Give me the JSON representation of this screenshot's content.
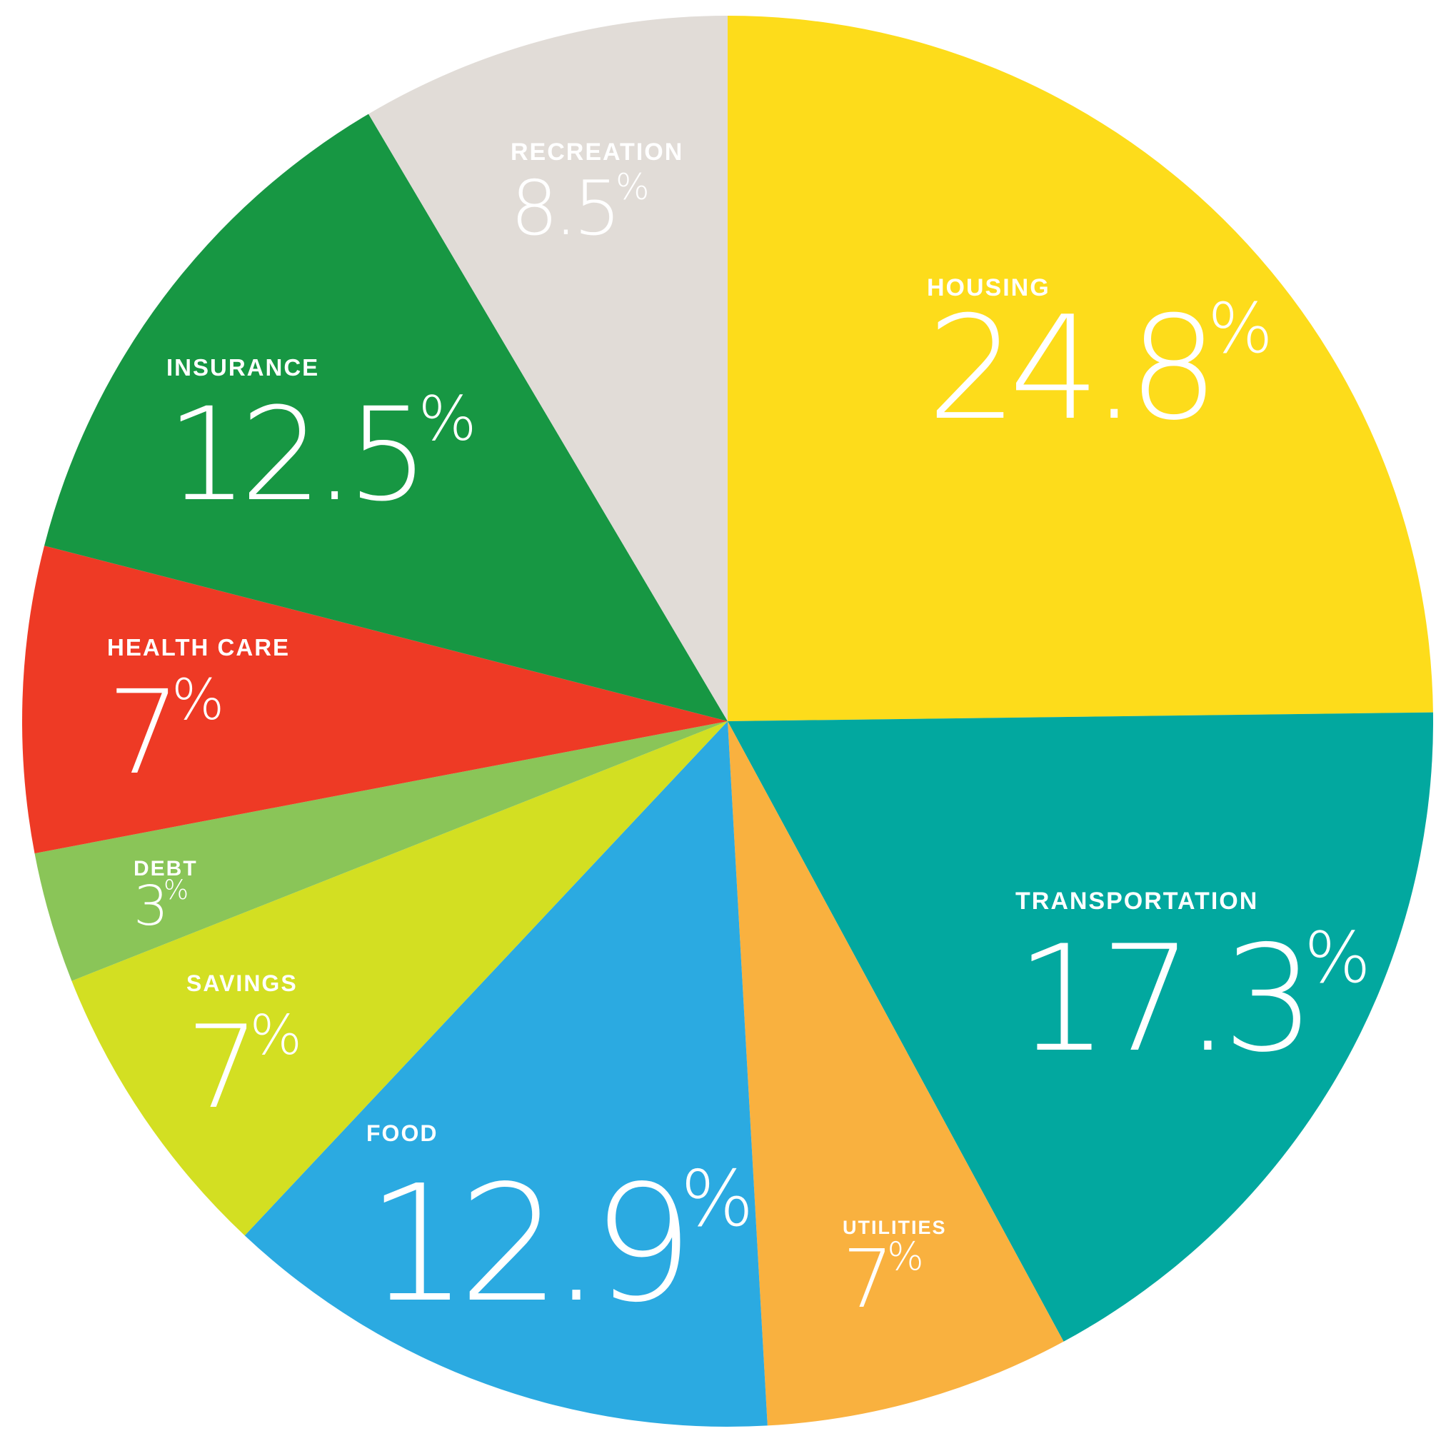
{
  "chart_data": {
    "type": "pie",
    "title": "",
    "start": "12 o'clock",
    "direction": "clockwise",
    "slices": [
      {
        "label": "HOUSING",
        "value": 24.8,
        "num": "24.8",
        "color": "#FDDC1B"
      },
      {
        "label": "TRANSPORTATION",
        "value": 17.3,
        "num": "17.3",
        "color": "#02A89F"
      },
      {
        "label": "UTILITIES",
        "value": 7,
        "num": "7",
        "color": "#F9B13F"
      },
      {
        "label": "FOOD",
        "value": 12.9,
        "num": "12.9",
        "color": "#2BAAE1"
      },
      {
        "label": "SAVINGS",
        "value": 7,
        "num": "7",
        "color": "#D3DF22"
      },
      {
        "label": "DEBT",
        "value": 3,
        "num": "3",
        "color": "#8AC558"
      },
      {
        "label": "HEALTH CARE",
        "value": 7,
        "num": "7",
        "color": "#EE3A25"
      },
      {
        "label": "INSURANCE",
        "value": 12.5,
        "num": "12.5",
        "color": "#179743"
      },
      {
        "label": "RECREATION",
        "value": 8.5,
        "num": "8.5",
        "color": "#E1DCD7"
      }
    ]
  }
}
